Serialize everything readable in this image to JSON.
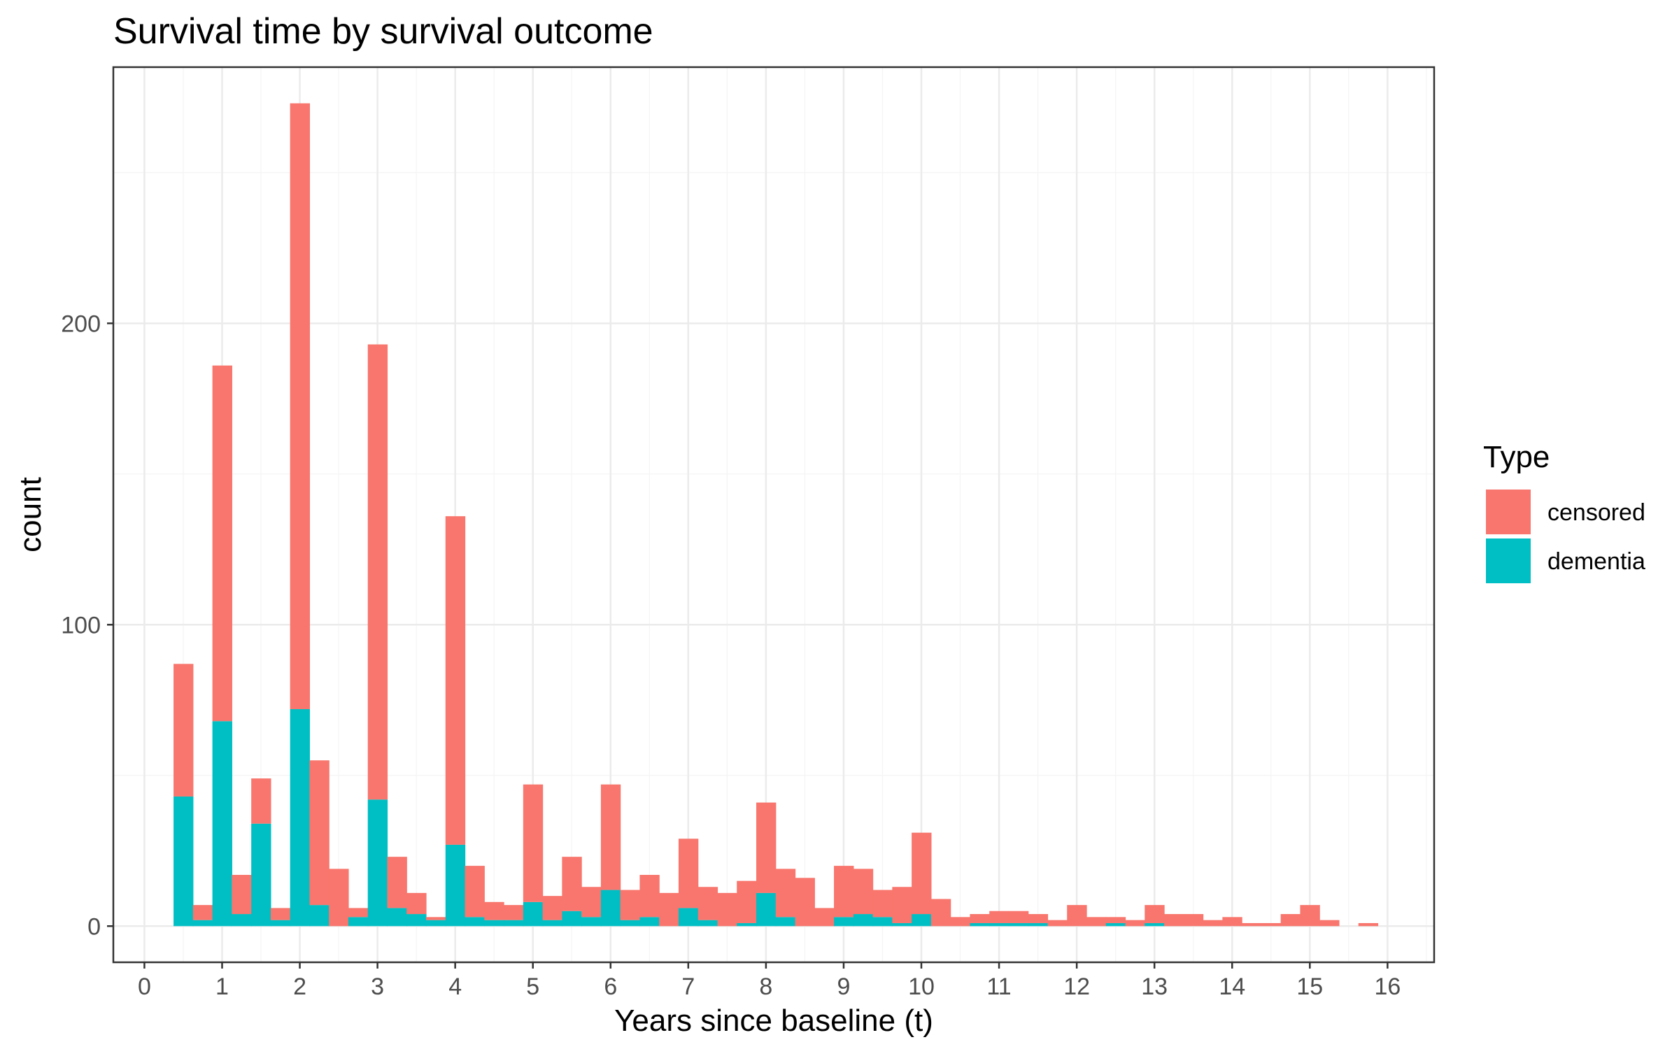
{
  "chart_data": {
    "type": "bar",
    "stacked": true,
    "title": "Survival time by survival outcome",
    "xlabel": "Years since baseline (t)",
    "ylabel": "count",
    "xlim": [
      -0.4,
      16.6
    ],
    "ylim": [
      -12,
      285
    ],
    "x_ticks": [
      0,
      1,
      2,
      3,
      4,
      5,
      6,
      7,
      8,
      9,
      10,
      11,
      12,
      13,
      14,
      15,
      16
    ],
    "y_ticks": [
      0,
      100,
      200
    ],
    "grid": true,
    "bin_width": 0.25,
    "legend": {
      "title": "Type",
      "position": "right",
      "entries": [
        "censored",
        "dementia"
      ]
    },
    "colors": {
      "censored": "#F8766D",
      "dementia": "#00BFC4"
    },
    "x": [
      0.5,
      0.75,
      1.0,
      1.25,
      1.5,
      1.75,
      2.0,
      2.25,
      2.5,
      2.75,
      3.0,
      3.25,
      3.5,
      3.75,
      4.0,
      4.25,
      4.5,
      4.75,
      5.0,
      5.25,
      5.5,
      5.75,
      6.0,
      6.25,
      6.5,
      6.75,
      7.0,
      7.25,
      7.5,
      7.75,
      8.0,
      8.25,
      8.5,
      8.75,
      9.0,
      9.25,
      9.5,
      9.75,
      10.0,
      10.25,
      10.5,
      10.75,
      11.0,
      11.25,
      11.5,
      11.75,
      12.0,
      12.25,
      12.5,
      12.75,
      13.0,
      13.25,
      13.5,
      13.75,
      14.0,
      14.25,
      14.5,
      14.75,
      15.0,
      15.25,
      15.5,
      15.75
    ],
    "series": [
      {
        "name": "dementia",
        "values": [
          43,
          2,
          68,
          4,
          34,
          2,
          72,
          7,
          0,
          3,
          42,
          6,
          4,
          2,
          27,
          3,
          2,
          2,
          8,
          2,
          5,
          3,
          12,
          2,
          3,
          0,
          6,
          2,
          0,
          1,
          11,
          3,
          0,
          0,
          3,
          4,
          3,
          1,
          4,
          0,
          0,
          1,
          1,
          1,
          1,
          0,
          0,
          0,
          1,
          0,
          1,
          0,
          0,
          0,
          0,
          0,
          0,
          0,
          0,
          0,
          0,
          0
        ]
      },
      {
        "name": "censored",
        "values": [
          44,
          5,
          118,
          13,
          15,
          4,
          201,
          48,
          19,
          3,
          151,
          17,
          7,
          1,
          109,
          17,
          6,
          5,
          39,
          8,
          18,
          10,
          35,
          10,
          14,
          11,
          23,
          11,
          11,
          14,
          30,
          16,
          16,
          6,
          17,
          15,
          9,
          12,
          27,
          9,
          3,
          3,
          4,
          4,
          3,
          2,
          7,
          3,
          2,
          2,
          6,
          4,
          4,
          2,
          3,
          1,
          1,
          4,
          7,
          2,
          0,
          1
        ]
      }
    ]
  }
}
